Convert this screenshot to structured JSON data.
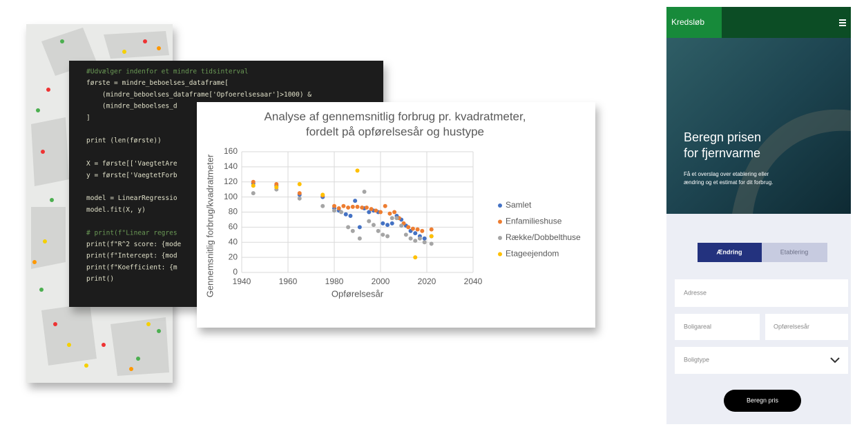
{
  "code": {
    "lines": [
      "#Udvælger indenfor et mindre tidsinterval",
      "første = mindre_beboelses_dataframe[",
      "    (mindre_beboelses_dataframe['Opfoerelsesaar']>1000) &",
      "    (mindre_beboelses_d",
      "]",
      "print (len(første))",
      "X = første[['VaegtetAre",
      "y = første['VaegtetForb",
      "model = LinearRegressio",
      "model.fit(X, y)",
      "# print(f\"Linear regres",
      "print(f\"R^2 score: {mode",
      "print(f\"Intercept: {mod",
      "print(f\"Koefficient: {m",
      "print()"
    ]
  },
  "chart_data": {
    "type": "scatter",
    "title": [
      "Analyse af gennemsnitlig forbrug pr. kvadratmeter,",
      "fordelt på opførelsesår og hustype"
    ],
    "x_label": "Opførelsesår",
    "y_label": "Gennemsnitlig forbrug/kvadratmeter",
    "xlim": [
      1940,
      2040
    ],
    "xticks": [
      1940,
      1960,
      1980,
      2000,
      2020,
      2040
    ],
    "ylim": [
      0,
      160
    ],
    "yticks": [
      0,
      20,
      40,
      60,
      80,
      100,
      120,
      140,
      160
    ],
    "grid": true,
    "legend": "right",
    "series": [
      {
        "name": "Samlet",
        "color": "#4472c4",
        "x": [
          1945,
          1955,
          1965,
          1975,
          1980,
          1982,
          1985,
          1987,
          1989,
          1991,
          1993,
          1995,
          1997,
          1999,
          2001,
          2003,
          2005,
          2007,
          2009,
          2011,
          2013,
          2015,
          2017,
          2019,
          2022
        ],
        "values": [
          118,
          115,
          103,
          100,
          85,
          82,
          77,
          75,
          95,
          60,
          85,
          80,
          82,
          80,
          65,
          63,
          65,
          75,
          70,
          62,
          55,
          52,
          48,
          45,
          48
        ]
      },
      {
        "name": "Enfamilieshuse",
        "color": "#ed7d31",
        "x": [
          1945,
          1955,
          1965,
          1975,
          1980,
          1982,
          1984,
          1986,
          1988,
          1990,
          1992,
          1994,
          1996,
          1998,
          2000,
          2002,
          2004,
          2006,
          2008,
          2010,
          2012,
          2014,
          2016,
          2018,
          2022
        ],
        "values": [
          120,
          117,
          105,
          102,
          88,
          85,
          88,
          86,
          87,
          87,
          86,
          86,
          84,
          82,
          80,
          88,
          78,
          80,
          72,
          65,
          60,
          58,
          57,
          55,
          57
        ]
      },
      {
        "name": "Række/Dobbelthuse",
        "color": "#a5a5a5",
        "x": [
          1945,
          1955,
          1965,
          1975,
          1980,
          1983,
          1986,
          1988,
          1991,
          1993,
          1995,
          1997,
          1999,
          2001,
          2003,
          2005,
          2007,
          2009,
          2011,
          2013,
          2015,
          2017,
          2019,
          2022
        ],
        "values": [
          105,
          110,
          98,
          88,
          82,
          80,
          60,
          55,
          45,
          107,
          68,
          63,
          55,
          50,
          48,
          72,
          72,
          62,
          50,
          45,
          42,
          45,
          40,
          38
        ]
      },
      {
        "name": "Etageejendom",
        "color": "#ffc000",
        "x": [
          1945,
          1955,
          1965,
          1975,
          1990,
          2015,
          2022
        ],
        "values": [
          115,
          113,
          117,
          103,
          135,
          20,
          48
        ]
      }
    ]
  },
  "app": {
    "logo": "Kredsløb",
    "hero_title": [
      "Beregn prisen",
      "for fjernvarme"
    ],
    "hero_text": [
      "Få et overslag over etablering eller",
      "ændring og et estimat for dit forbrug."
    ],
    "tabs": [
      "Ændring",
      "Etablering"
    ],
    "fields": {
      "address": "Adresse",
      "area": "Boligareal",
      "year": "Opførelsesår",
      "type": "Boligtype"
    },
    "button": "Beregn pris"
  }
}
